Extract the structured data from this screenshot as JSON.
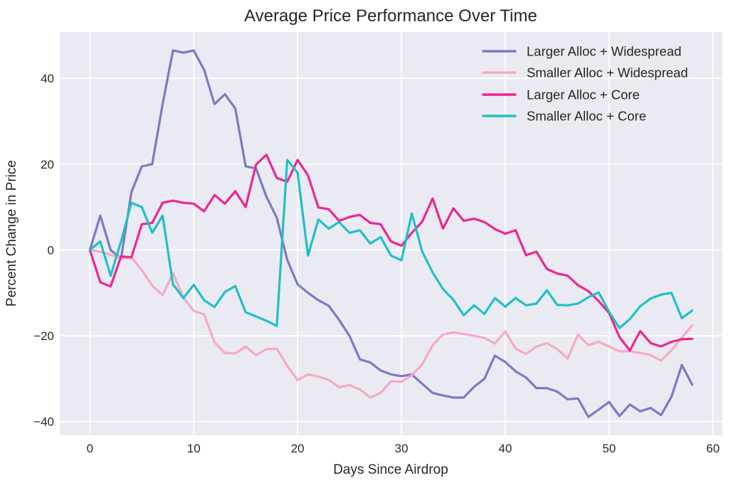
{
  "title": "Average Price Performance Over Time",
  "chart_data": {
    "type": "line",
    "title": "Average Price Performance Over Time",
    "xlabel": "Days Since Airdrop",
    "ylabel": "Percent Change in Price",
    "grid": true,
    "legend_position": "upper right",
    "plot_bg_color": "#eaeaf2",
    "grid_color": "#ffffff",
    "text_color": "#262626",
    "xlim": [
      -2.9,
      60.9
    ],
    "ylim": [
      -43.2,
      50.8
    ],
    "xticks": [
      0,
      10,
      20,
      30,
      40,
      50,
      60
    ],
    "yticks": [
      40,
      20,
      0,
      -20,
      -40
    ],
    "x": [
      0,
      1,
      2,
      3,
      4,
      5,
      6,
      7,
      8,
      9,
      10,
      11,
      12,
      13,
      14,
      15,
      16,
      17,
      18,
      19,
      20,
      21,
      22,
      23,
      24,
      25,
      26,
      27,
      28,
      29,
      30,
      31,
      32,
      33,
      34,
      35,
      36,
      37,
      38,
      39,
      40,
      41,
      42,
      43,
      44,
      45,
      46,
      47,
      48,
      49,
      50,
      51,
      52,
      53,
      54,
      55,
      56,
      57,
      58
    ],
    "series": [
      {
        "name": "Larger Alloc + Widespread",
        "color": "#7d78c6",
        "values": [
          0,
          8,
          0,
          -2,
          13.5,
          19.5,
          20,
          34,
          46.5,
          46,
          46.5,
          42,
          34,
          36.3,
          33,
          19.5,
          19,
          12.4,
          7.5,
          -2.3,
          -8,
          -10,
          -11.7,
          -13,
          -16.3,
          -20,
          -25.5,
          -26.2,
          -28.1,
          -29,
          -29.4,
          -29,
          -31.2,
          -33.3,
          -33.9,
          -34.4,
          -34.4,
          -31.9,
          -30,
          -24.6,
          -26.1,
          -28.3,
          -29.7,
          -32.2,
          -32.2,
          -33,
          -34.8,
          -34.6,
          -38.9,
          -37.2,
          -35.4,
          -38.7,
          -36,
          -37.6,
          -36.8,
          -38.5,
          -34.2,
          -26.8,
          -31.4
        ]
      },
      {
        "name": "Smaller Alloc + Widespread",
        "color": "#f7a8c3",
        "values": [
          0,
          -0.4,
          -1.1,
          -1.9,
          -1.7,
          -4.7,
          -8.3,
          -10.5,
          -5.4,
          -11.1,
          -14.2,
          -15,
          -21.5,
          -24,
          -24.1,
          -22.5,
          -24.5,
          -23.1,
          -23,
          -27,
          -30.3,
          -29,
          -29.5,
          -30.3,
          -32,
          -31.5,
          -32.5,
          -34.4,
          -33.3,
          -30.6,
          -30.7,
          -29.2,
          -26.6,
          -22.2,
          -19.7,
          -19.2,
          -19.6,
          -20,
          -20.5,
          -21.8,
          -19,
          -23,
          -24.2,
          -22.5,
          -21.7,
          -23.1,
          -25.3,
          -19.7,
          -22.2,
          -21.4,
          -22.5,
          -23.6,
          -23.6,
          -24,
          -24.5,
          -25.8,
          -23.4,
          -20.4,
          -17.6
        ]
      },
      {
        "name": "Larger Alloc + Core",
        "color": "#ec268f",
        "values": [
          0,
          -7.5,
          -8.5,
          -1.5,
          -1.7,
          6,
          6.3,
          11,
          11.5,
          11,
          10.8,
          9,
          12.8,
          10.8,
          13.7,
          10,
          19.9,
          22.2,
          16.8,
          15.9,
          21,
          17.4,
          9.9,
          9.5,
          6.8,
          7.7,
          8.2,
          6.3,
          6,
          2,
          1,
          4,
          6.6,
          12,
          5,
          9.7,
          6.8,
          7.3,
          6.5,
          4.9,
          3.8,
          4.6,
          -1.2,
          -0.4,
          -4.4,
          -5.5,
          -6,
          -8.2,
          -9.6,
          -11.9,
          -14.7,
          -20.3,
          -23.4,
          -18.9,
          -21.7,
          -22.5,
          -21.4,
          -20.8,
          -20.7
        ]
      },
      {
        "name": "Smaller Alloc + Core",
        "color": "#20bfc5",
        "values": [
          0,
          2,
          -6,
          2,
          11,
          10,
          4,
          8,
          -8,
          -11.2,
          -8.1,
          -11.7,
          -13.3,
          -9.8,
          -8.4,
          -14.5,
          -15.5,
          -16.5,
          -17.7,
          21,
          18,
          -1.3,
          7.1,
          5,
          6.5,
          4,
          4.6,
          1.5,
          3,
          -1.3,
          -2.4,
          8.5,
          -0.4,
          -5.2,
          -9.1,
          -11.6,
          -15.2,
          -12.9,
          -14.9,
          -11.2,
          -13.2,
          -11.2,
          -12.9,
          -12.5,
          -9.4,
          -12.8,
          -12.9,
          -12.5,
          -11,
          -9.9,
          -14.4,
          -18.2,
          -16.1,
          -13.1,
          -11.3,
          -10.4,
          -10,
          -15.9,
          -14.1
        ]
      }
    ]
  }
}
